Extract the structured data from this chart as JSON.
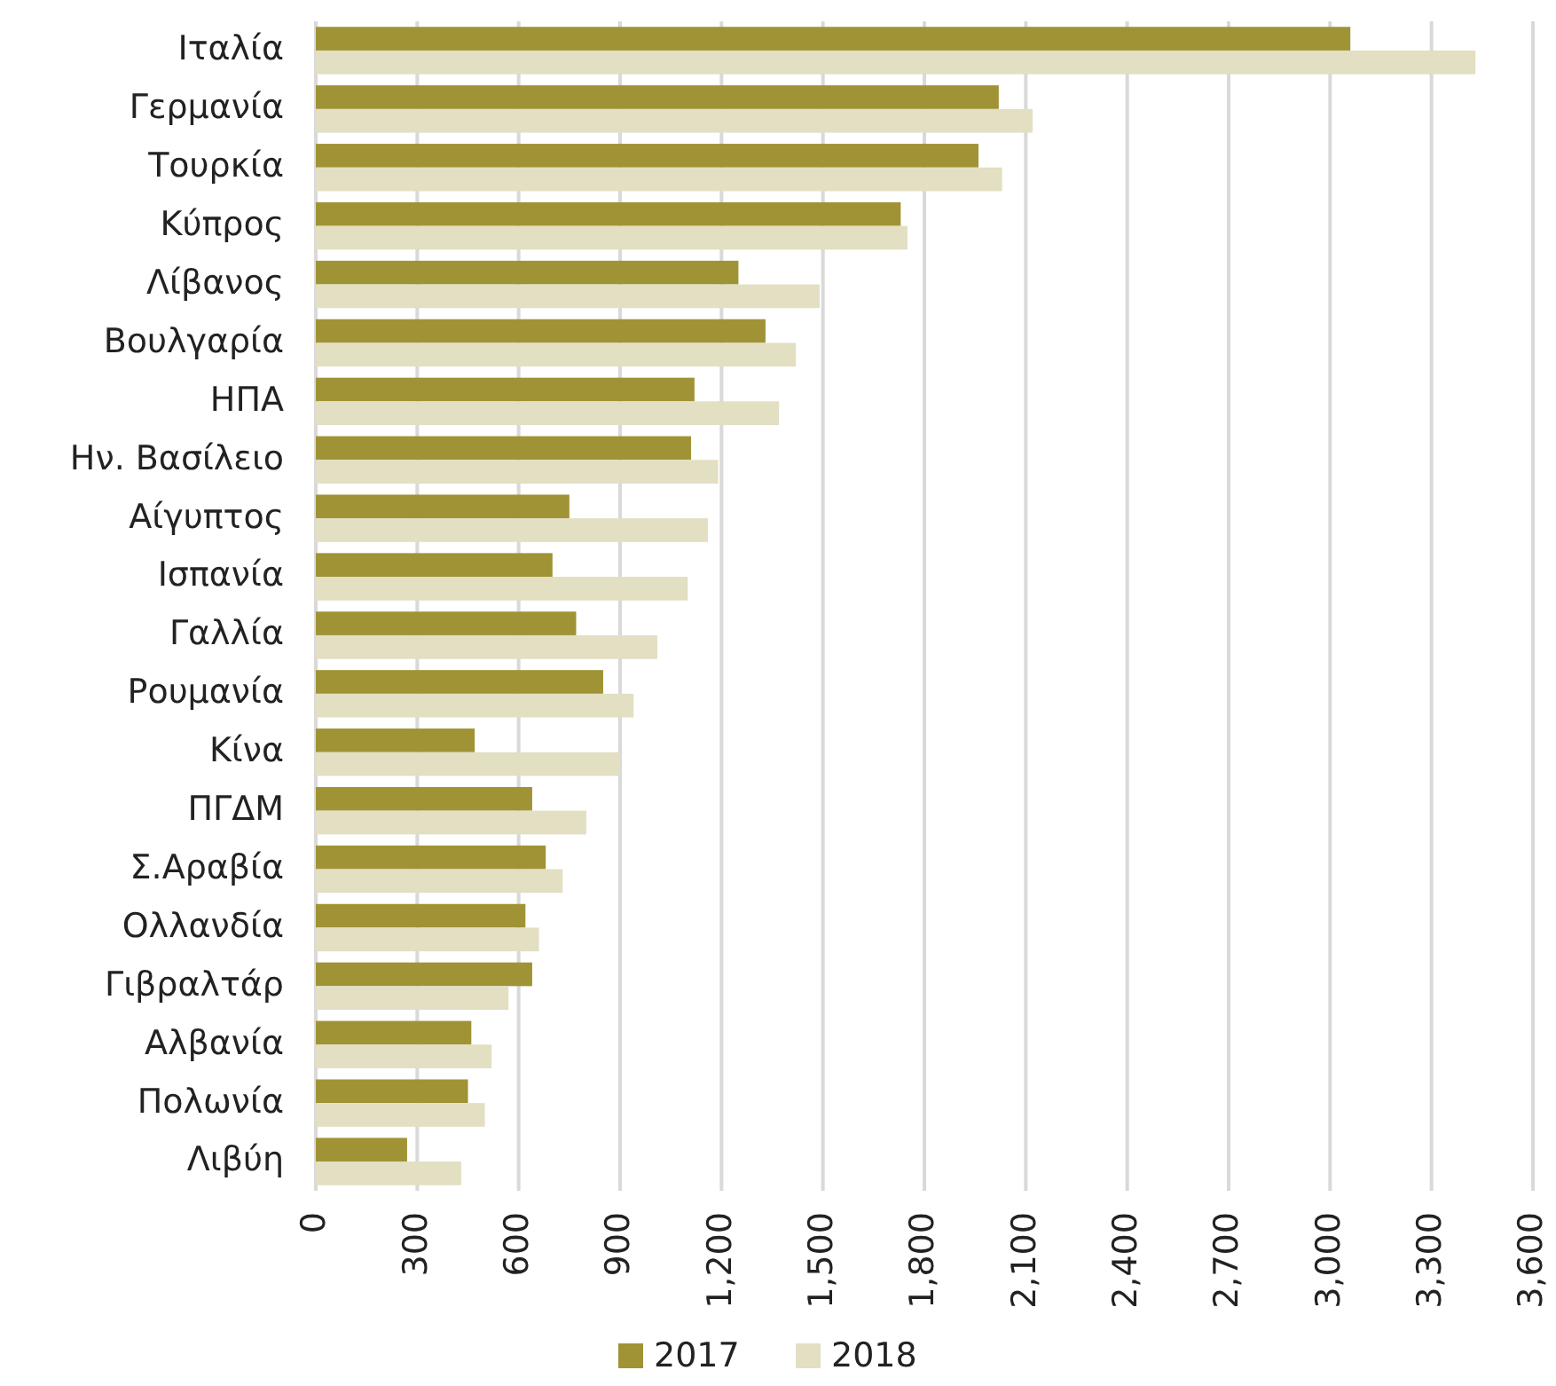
{
  "chart_data": {
    "type": "bar",
    "orientation": "horizontal",
    "categories": [
      "Ιταλία",
      "Γερμανία",
      "Τουρκία",
      "Κύπρος",
      "Λίβανος",
      "Βουλγαρία",
      "ΗΠΑ",
      "Ην. Βασίλειο",
      "Αίγυπτος",
      "Ισπανία",
      "Γαλλία",
      "Ρουμανία",
      "Κίνα",
      "ΠΓΔΜ",
      "Σ.Αραβία",
      "Ολλανδία",
      "Γιβραλτάρ",
      "Αλβανία",
      "Πολωνία",
      "Λιβύη"
    ],
    "series": [
      {
        "name": "2017",
        "color": "#a09335",
        "values": [
          3060,
          2020,
          1960,
          1730,
          1250,
          1330,
          1120,
          1110,
          750,
          700,
          770,
          850,
          470,
          640,
          680,
          620,
          640,
          460,
          450,
          270
        ]
      },
      {
        "name": "2018",
        "color": "#e2dfc2",
        "values": [
          3430,
          2120,
          2030,
          1750,
          1490,
          1420,
          1370,
          1190,
          1160,
          1100,
          1010,
          940,
          900,
          800,
          730,
          660,
          570,
          520,
          500,
          430
        ]
      }
    ],
    "xlim": [
      0,
      3600
    ],
    "xticks": [
      0,
      300,
      600,
      900,
      {
        "value": 1200,
        "label": "1,200"
      },
      {
        "value": 1500,
        "label": "1,500"
      },
      {
        "value": 1800,
        "label": "1,800"
      },
      {
        "value": 2100,
        "label": "2,100"
      },
      {
        "value": 2400,
        "label": "2,400"
      },
      {
        "value": 2700,
        "label": "2,700"
      },
      {
        "value": 3000,
        "label": "3,000"
      },
      {
        "value": 3300,
        "label": "3,300"
      },
      {
        "value": 3600,
        "label": "3,600"
      }
    ],
    "grid": "x",
    "legend": "bottom"
  }
}
